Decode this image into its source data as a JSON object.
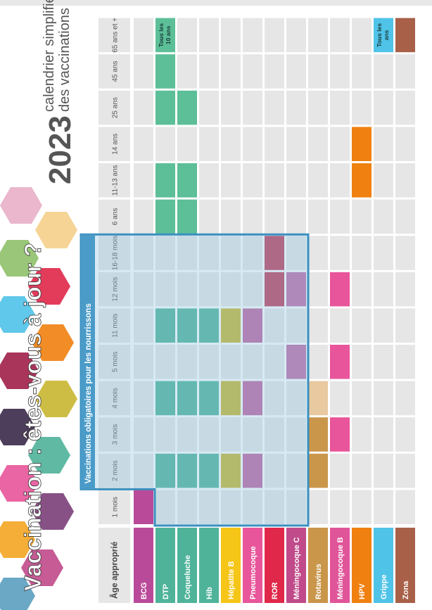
{
  "title": "Vaccination : êtes-vous à jour ?",
  "calendar": {
    "year": "2023",
    "line1": "calendrier simplifié",
    "line2": "des vaccinations"
  },
  "table": {
    "corner": "Âge approprié",
    "box_label": "Vaccinations obligatoires pour les nourrissons",
    "ages": [
      "1 mois",
      "2 mois",
      "3 mois",
      "4 mois",
      "5 mois",
      "11 mois",
      "12 mois",
      "16-18 mois",
      "6 ans",
      "11-13 ans",
      "14 ans",
      "25 ans",
      "45 ans",
      "65 ans et +"
    ],
    "rows": [
      {
        "name": "BCG",
        "color": "#b94a9a",
        "cells": [
          "#b94a9a",
          null,
          null,
          null,
          null,
          null,
          null,
          null,
          null,
          null,
          null,
          null,
          null,
          null
        ]
      },
      {
        "name": "DTP",
        "color": "#4fb39a",
        "cells": [
          null,
          "#4fb39a",
          null,
          "#4fb39a",
          null,
          "#4fb39a",
          null,
          null,
          "#5cbf97",
          "#5cbf97",
          null,
          "#5cbf97",
          "#5cbf97",
          {
            "color": "#5cbf97",
            "label": "Tous les 10 ans"
          }
        ]
      },
      {
        "name": "Coqueluche",
        "color": "#4fb39a",
        "cells": [
          null,
          "#4fb39a",
          null,
          "#4fb39a",
          null,
          "#4fb39a",
          null,
          null,
          "#5cbf97",
          "#5cbf97",
          null,
          "#5cbf97",
          null,
          null
        ]
      },
      {
        "name": "Hib",
        "color": "#4fb39a",
        "cells": [
          null,
          "#4fb39a",
          null,
          "#4fb39a",
          null,
          "#4fb39a",
          null,
          null,
          null,
          null,
          null,
          null,
          null,
          null
        ]
      },
      {
        "name": "Hépatite B",
        "color": "#f5c518",
        "cells": [
          null,
          "#c9b630",
          null,
          "#c9b630",
          null,
          "#c9b630",
          null,
          null,
          null,
          null,
          null,
          null,
          null,
          null
        ]
      },
      {
        "name": "Pneumocoque",
        "color": "#e8559a",
        "cells": [
          null,
          "#c063a2",
          null,
          "#c063a2",
          null,
          "#c063a2",
          null,
          null,
          null,
          null,
          null,
          null,
          null,
          null
        ]
      },
      {
        "name": "ROR",
        "color": "#e0284a",
        "cells": [
          null,
          null,
          null,
          null,
          null,
          null,
          "#c0395a",
          "#c0395a",
          null,
          null,
          null,
          null,
          null,
          null
        ]
      },
      {
        "name": "Méningocoque C",
        "color": "#c04a8a",
        "cells": [
          null,
          null,
          null,
          null,
          "#c06aa8",
          null,
          "#c06aa8",
          null,
          null,
          null,
          null,
          null,
          null,
          null
        ]
      },
      {
        "name": "Rotavirus",
        "color": "#c9964a",
        "cells": [
          null,
          "#c9964a",
          "#c9964a",
          "#e8c9a0",
          null,
          null,
          null,
          null,
          null,
          null,
          null,
          null,
          null,
          null
        ]
      },
      {
        "name": "Méningocoque B",
        "color": "#e0559a",
        "cells": [
          null,
          null,
          "#e8559a",
          null,
          "#e8559a",
          null,
          "#e8559a",
          null,
          null,
          null,
          null,
          null,
          null,
          null
        ]
      },
      {
        "name": "HPV",
        "color": "#f08010",
        "cells": [
          null,
          null,
          null,
          null,
          null,
          null,
          null,
          null,
          null,
          "#f08010",
          "#f08010",
          null,
          null,
          null
        ]
      },
      {
        "name": "Grippe",
        "color": "#4fc3e8",
        "cells": [
          null,
          null,
          null,
          null,
          null,
          null,
          null,
          null,
          null,
          null,
          null,
          null,
          null,
          {
            "color": "#4fc3e8",
            "label": "Tous les ans"
          }
        ]
      },
      {
        "name": "Zona",
        "color": "#a86048",
        "cells": [
          null,
          null,
          null,
          null,
          null,
          null,
          null,
          null,
          null,
          null,
          null,
          null,
          null,
          "#a86048"
        ]
      }
    ]
  }
}
